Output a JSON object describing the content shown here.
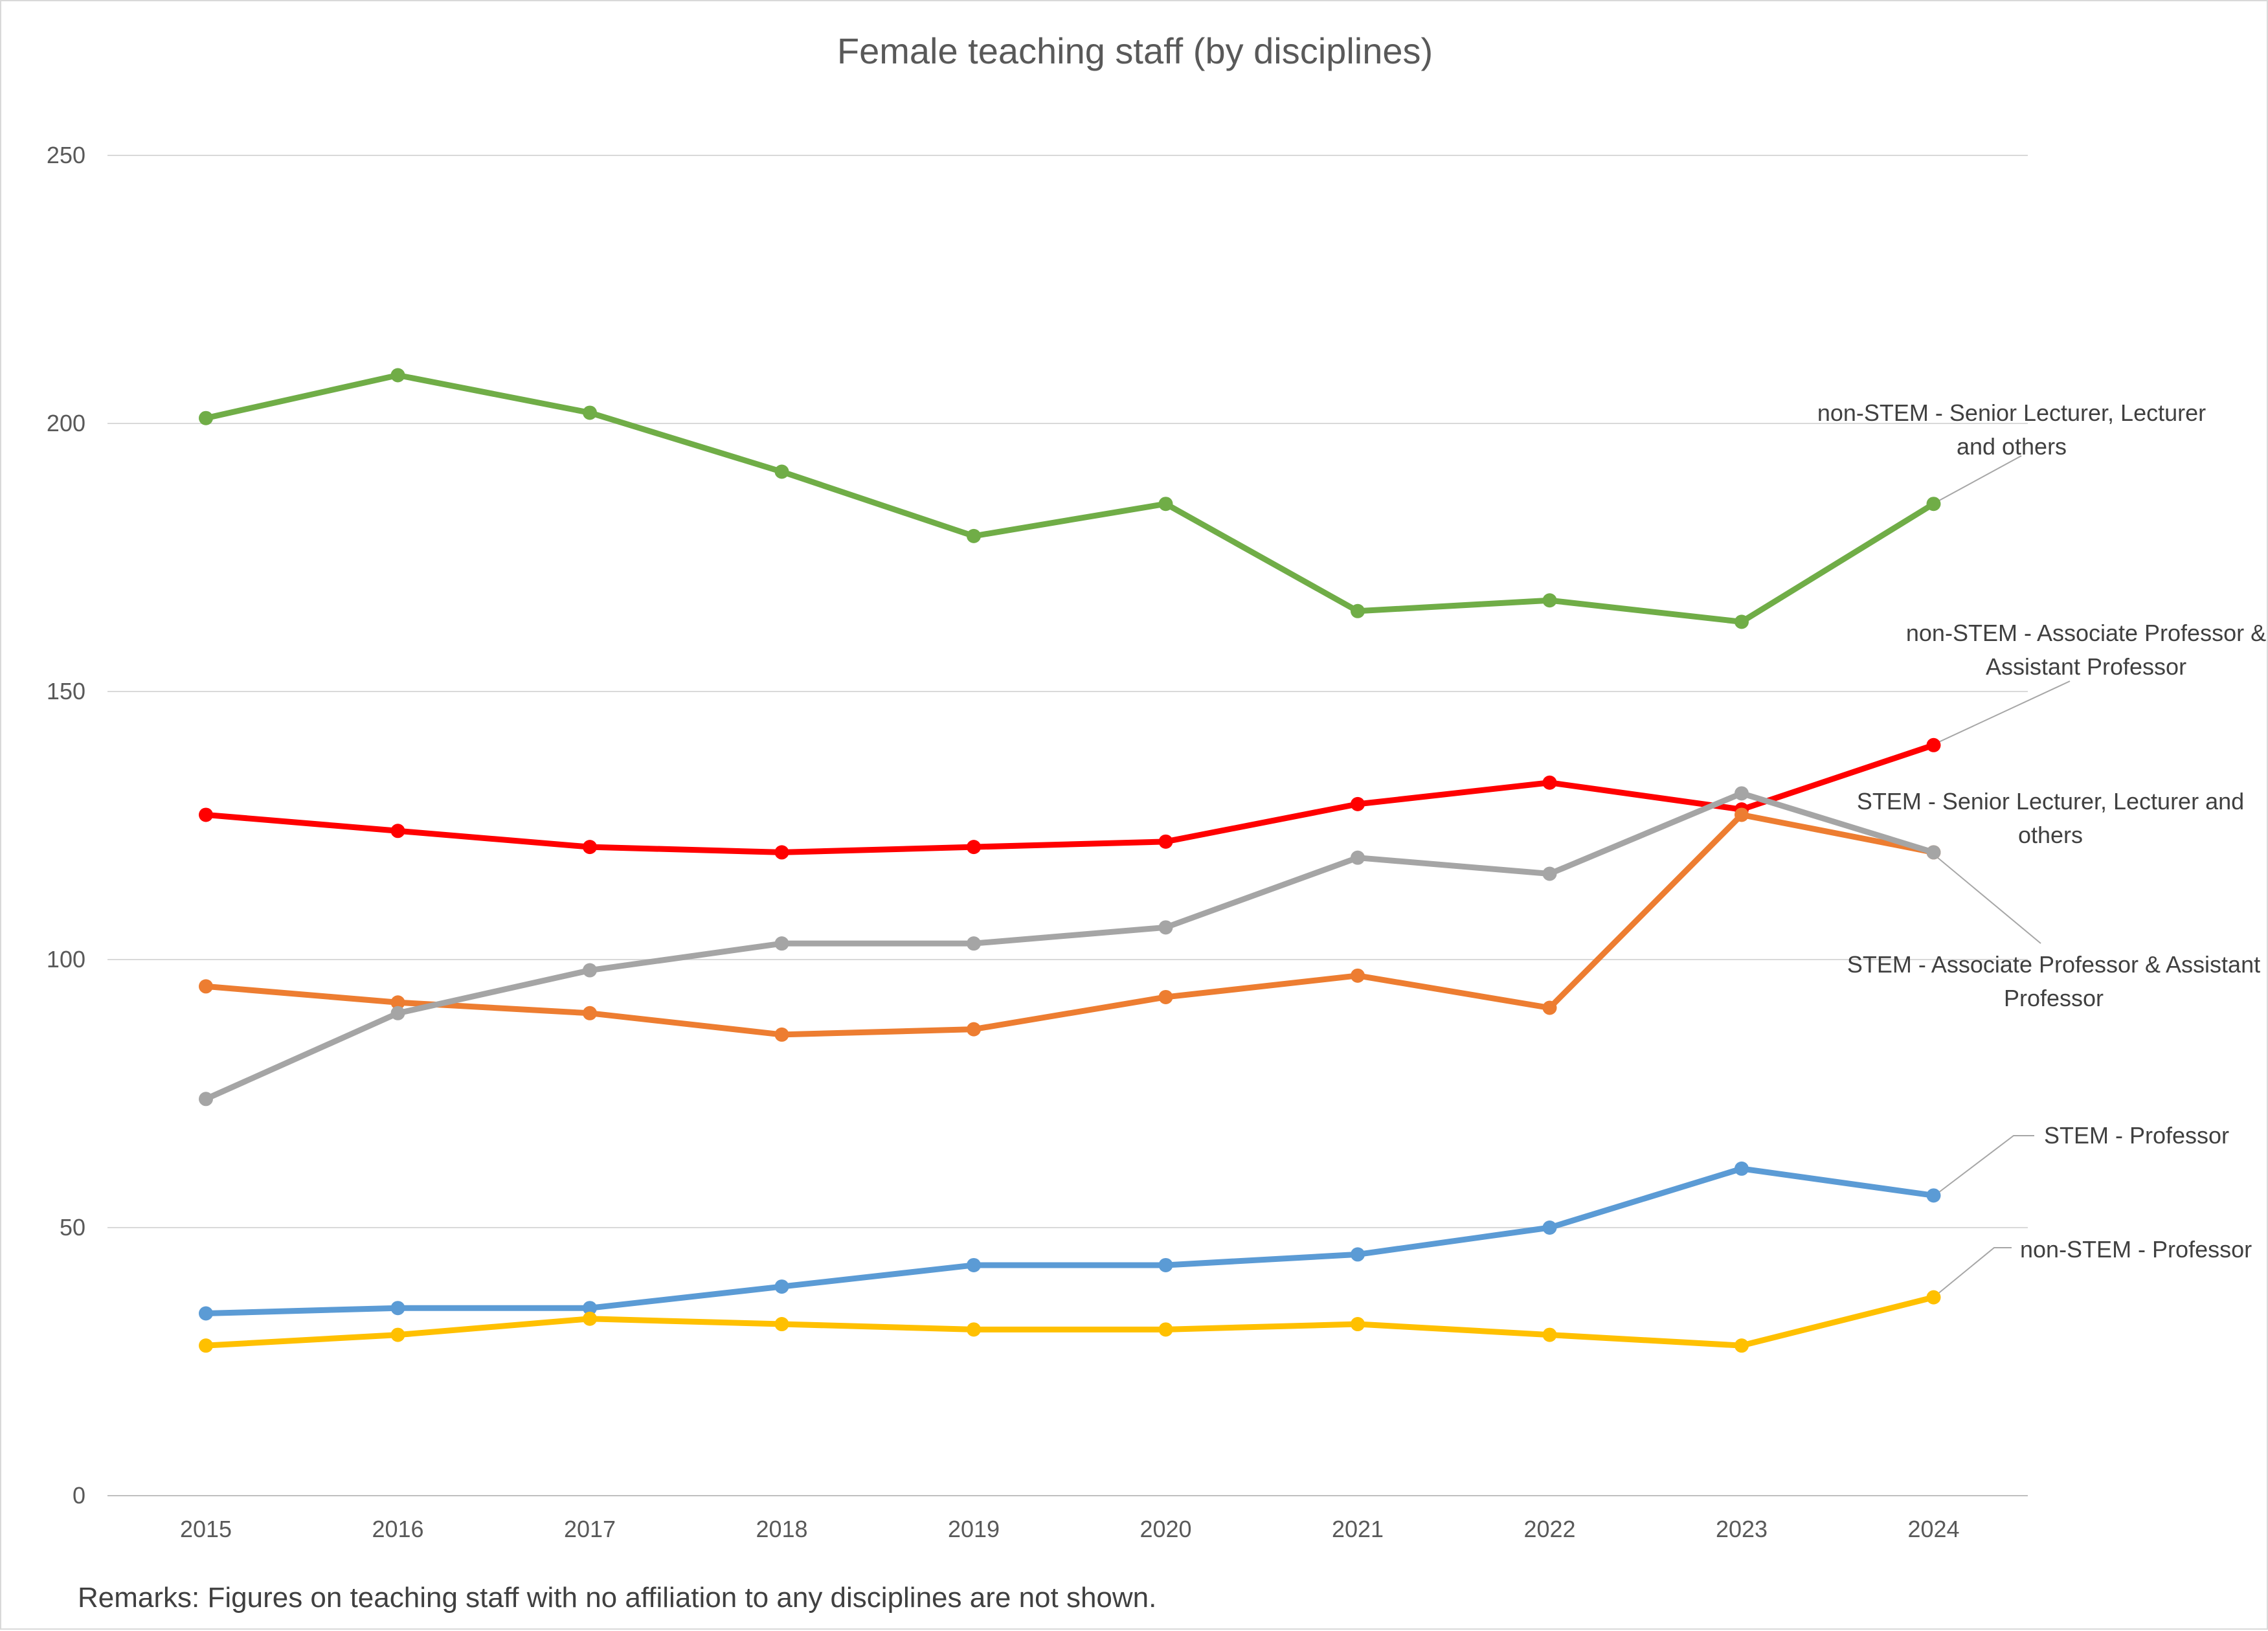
{
  "chart_data": {
    "type": "line",
    "title": "Female teaching staff (by disciplines)",
    "xlabel": "",
    "ylabel": "",
    "ylim": [
      0,
      250
    ],
    "y_ticks": [
      0,
      50,
      100,
      150,
      200,
      250
    ],
    "grid": true,
    "legend": "none",
    "categories": [
      "2015",
      "2016",
      "2017",
      "2018",
      "2019",
      "2020",
      "2021",
      "2022",
      "2023",
      "2024"
    ],
    "series": [
      {
        "name": "non-STEM - Senior Lecturer, Lecturer and others",
        "label_lines": [
          "non-STEM - Senior Lecturer, Lecturer",
          "and others"
        ],
        "color": "#70AD47",
        "values": [
          201,
          209,
          202,
          191,
          179,
          185,
          165,
          167,
          163,
          185
        ]
      },
      {
        "name": "non-STEM - Associate Professor & Assistant Professor",
        "label_lines": [
          "non-STEM - Associate Professor &",
          "Assistant Professor"
        ],
        "color": "#FF0000",
        "values": [
          127,
          124,
          121,
          120,
          121,
          122,
          129,
          133,
          128,
          140
        ]
      },
      {
        "name": "STEM - Senior Lecturer, Lecturer and others",
        "label_lines": [
          "STEM - Senior Lecturer, Lecturer and",
          "others"
        ],
        "color": "#ED7D31",
        "values": [
          95,
          92,
          90,
          86,
          87,
          93,
          97,
          91,
          127,
          120
        ]
      },
      {
        "name": "STEM - Associate Professor & Assistant Professor",
        "label_lines": [
          "STEM - Associate Professor & Assistant",
          "Professor"
        ],
        "color": "#A5A5A5",
        "values": [
          74,
          90,
          98,
          103,
          103,
          106,
          119,
          116,
          131,
          120
        ]
      },
      {
        "name": "STEM - Professor",
        "label_lines": [
          "STEM - Professor"
        ],
        "color": "#5B9BD5",
        "values": [
          34,
          35,
          35,
          39,
          43,
          43,
          45,
          50,
          61,
          56
        ]
      },
      {
        "name": "non-STEM - Professor",
        "label_lines": [
          "non-STEM - Professor"
        ],
        "color": "#FFC000",
        "values": [
          28,
          30,
          33,
          32,
          31,
          31,
          32,
          30,
          28,
          37
        ]
      }
    ],
    "remarks": "Remarks: Figures on teaching staff with no affiliation to any disciplines are not shown."
  }
}
